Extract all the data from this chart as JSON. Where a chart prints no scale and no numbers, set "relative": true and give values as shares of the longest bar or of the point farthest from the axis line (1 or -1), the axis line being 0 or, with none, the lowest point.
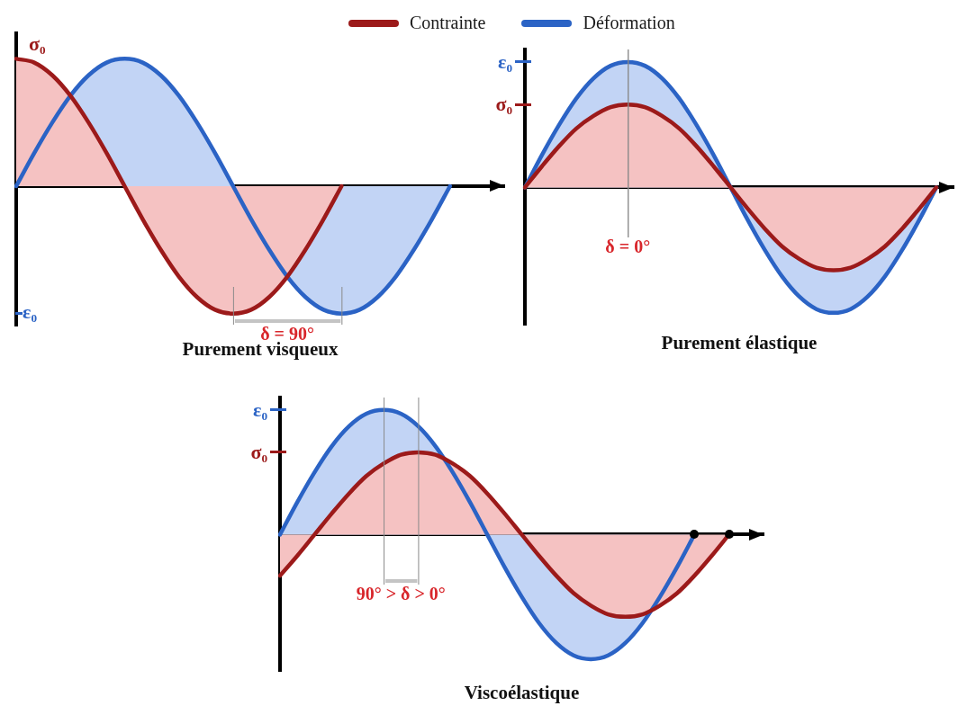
{
  "chart_data": [
    {
      "type": "area",
      "title": "Purement visqueux",
      "relative": true,
      "legend": "top",
      "categories": [
        null,
        null,
        null,
        null,
        null,
        null,
        null,
        null,
        null,
        null,
        null,
        null,
        null,
        null,
        null,
        null,
        null,
        null,
        null,
        null,
        null,
        null,
        null,
        null,
        null,
        null,
        null,
        null
      ],
      "series": [
        {
          "name": "Contrainte",
          "color": "#9c1a1a",
          "values": [
            1,
            0.97,
            0.87,
            0.71,
            0.5,
            0.26,
            0,
            -0.26,
            -0.5,
            -0.71,
            -0.87,
            -0.97,
            -1,
            -0.97,
            -0.87,
            -0.71,
            -0.5,
            -0.26,
            0,
            null,
            null,
            null,
            null,
            null,
            null,
            null,
            null,
            null
          ]
        },
        {
          "name": "Déformation",
          "color": "#2b63c5",
          "values": [
            0,
            0.26,
            0.5,
            0.71,
            0.87,
            0.97,
            1,
            0.97,
            0.87,
            0.71,
            0.5,
            0.26,
            0,
            -0.26,
            -0.5,
            -0.71,
            -0.87,
            -0.97,
            -1,
            -0.97,
            -0.87,
            -0.71,
            -0.5,
            -0.26,
            0,
            null,
            null,
            null
          ]
        }
      ],
      "annotations": [
        "σ₀",
        "ε₀",
        "δ = 90°"
      ]
    },
    {
      "type": "area",
      "title": "Purement élastique",
      "relative": true,
      "categories": [
        null,
        null,
        null,
        null,
        null,
        null,
        null,
        null,
        null,
        null,
        null,
        null,
        null,
        null,
        null,
        null,
        null,
        null,
        null,
        null,
        null,
        null,
        null,
        null,
        null,
        null
      ],
      "series": [
        {
          "color": "#9c1a1a",
          "values": [
            0,
            0.17,
            0.33,
            0.47,
            0.57,
            0.64,
            0.66,
            0.64,
            0.57,
            0.47,
            0.33,
            0.17,
            0,
            -0.17,
            -0.33,
            -0.47,
            -0.57,
            -0.64,
            -0.66,
            -0.64,
            -0.57,
            -0.47,
            -0.33,
            -0.17,
            0,
            null
          ]
        },
        {
          "color": "#2b63c5",
          "values": [
            0,
            0.26,
            0.5,
            0.71,
            0.87,
            0.97,
            1,
            0.97,
            0.87,
            0.71,
            0.5,
            0.26,
            0,
            -0.26,
            -0.5,
            -0.71,
            -0.87,
            -0.97,
            -1,
            -0.97,
            -0.87,
            -0.71,
            -0.5,
            -0.26,
            0,
            null
          ]
        }
      ],
      "annotations": [
        "σ₀",
        "ε₀",
        "δ = 0°"
      ]
    },
    {
      "type": "area",
      "title": "Viscoélastique",
      "relative": true,
      "categories": [
        null,
        null,
        null,
        null,
        null,
        null,
        null,
        null,
        null,
        null,
        null,
        null,
        null,
        null,
        null,
        null,
        null,
        null,
        null,
        null,
        null,
        null,
        null,
        null,
        null,
        null,
        null,
        null,
        null
      ],
      "series": [
        {
          "color": "#9c1a1a",
          "values": [
            -0.33,
            -0.17,
            0,
            0.17,
            0.33,
            0.47,
            0.57,
            0.64,
            0.66,
            0.64,
            0.57,
            0.47,
            0.33,
            0.17,
            0,
            -0.17,
            -0.33,
            -0.47,
            -0.57,
            -0.64,
            -0.66,
            -0.64,
            -0.57,
            -0.47,
            -0.33,
            -0.17,
            0,
            null,
            null
          ]
        },
        {
          "color": "#2b63c5",
          "values": [
            0,
            0.26,
            0.5,
            0.71,
            0.87,
            0.97,
            1,
            0.97,
            0.87,
            0.71,
            0.5,
            0.26,
            0,
            -0.26,
            -0.5,
            -0.71,
            -0.87,
            -0.97,
            -1,
            -0.97,
            -0.87,
            -0.71,
            -0.5,
            -0.26,
            0,
            null,
            null,
            null,
            null
          ]
        }
      ],
      "annotations": [
        "σ₀",
        "ε₀",
        "90° > δ > 0°"
      ]
    }
  ]
}
